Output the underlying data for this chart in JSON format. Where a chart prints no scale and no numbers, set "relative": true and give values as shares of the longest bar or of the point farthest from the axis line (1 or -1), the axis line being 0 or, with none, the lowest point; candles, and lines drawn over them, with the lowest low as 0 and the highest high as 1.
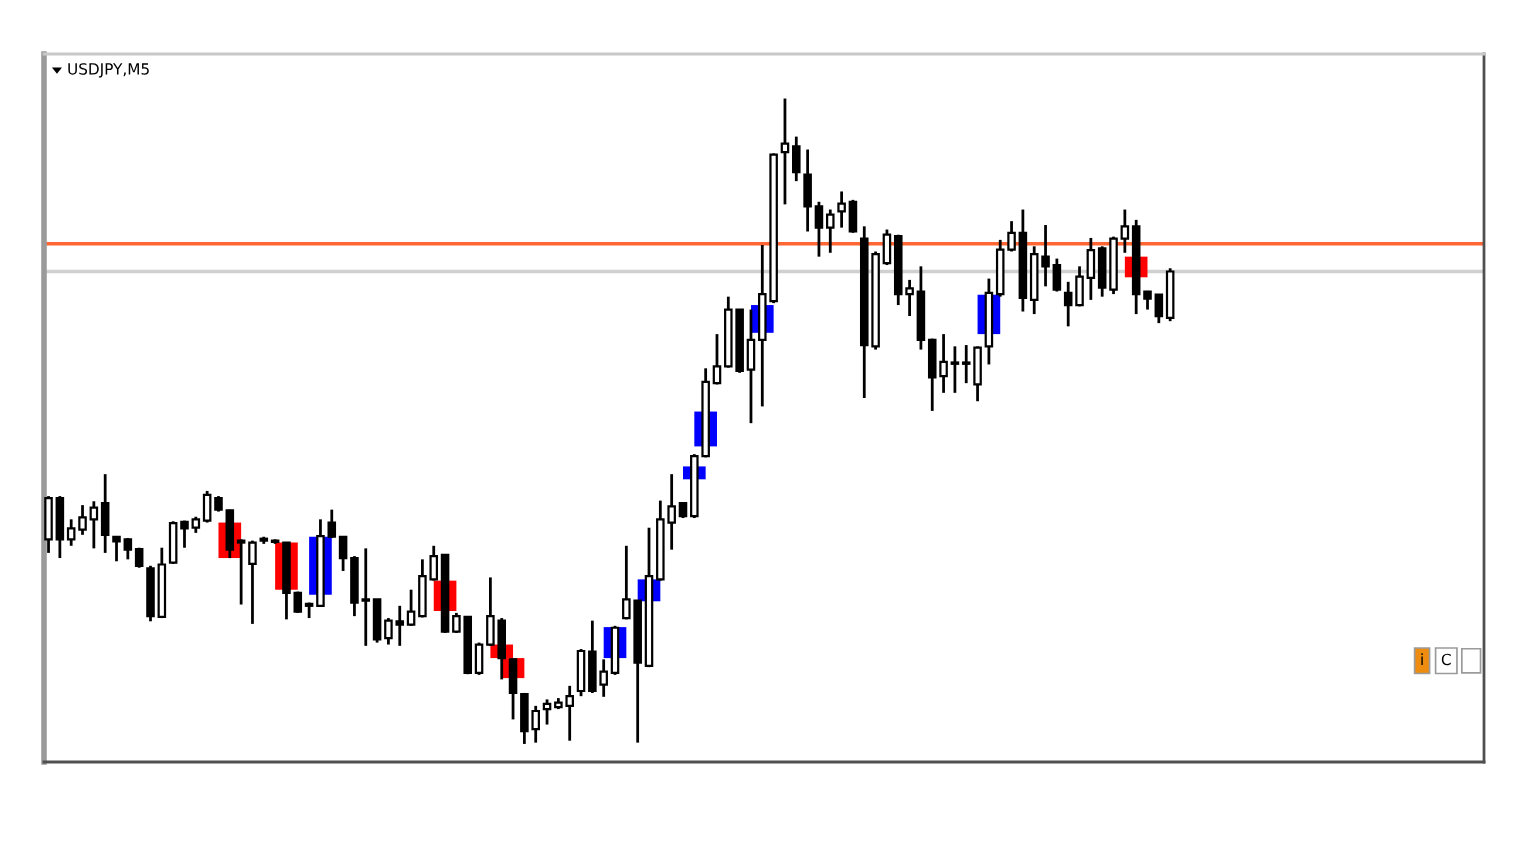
{
  "chart_data": {
    "type": "candlestick",
    "title": "USDJPY,M5",
    "relative": true,
    "categories": [
      null,
      null,
      null,
      null,
      null,
      null,
      null,
      null,
      null,
      null,
      null,
      null,
      null,
      null,
      null,
      null,
      null,
      null,
      null,
      null,
      null,
      null,
      null,
      null,
      null,
      null,
      null,
      null,
      null,
      null,
      null,
      null,
      null,
      null,
      null,
      null,
      null,
      null,
      null,
      null,
      null,
      null,
      null,
      null,
      null,
      null,
      null,
      null,
      null,
      null,
      null,
      null,
      null,
      null,
      null,
      null,
      null,
      null,
      null,
      null,
      null,
      null,
      null,
      null,
      null,
      null,
      null,
      null,
      null,
      null,
      null,
      null,
      null,
      null,
      null,
      null,
      null,
      null,
      null,
      null,
      null,
      null,
      null,
      null,
      null,
      null,
      null,
      null,
      null,
      null,
      null,
      null,
      null,
      null,
      null,
      null,
      null,
      null,
      null,
      null
    ],
    "ohlc": [
      [
        0.317,
        0.384,
        0.296,
        0.381
      ],
      [
        0.381,
        0.384,
        0.288,
        0.317
      ],
      [
        0.317,
        0.348,
        0.307,
        0.334
      ],
      [
        0.332,
        0.37,
        0.324,
        0.351
      ],
      [
        0.348,
        0.376,
        0.303,
        0.366
      ],
      [
        0.373,
        0.418,
        0.296,
        0.324
      ],
      [
        0.321,
        0.321,
        0.283,
        0.314
      ],
      [
        0.317,
        0.319,
        0.286,
        0.301
      ],
      [
        0.302,
        0.304,
        0.273,
        0.276
      ],
      [
        0.272,
        0.276,
        0.19,
        0.198
      ],
      [
        0.197,
        0.304,
        0.195,
        0.278
      ],
      [
        0.281,
        0.345,
        0.279,
        0.342
      ],
      [
        0.344,
        0.346,
        0.304,
        0.334
      ],
      [
        0.335,
        0.352,
        0.327,
        0.348
      ],
      [
        0.346,
        0.392,
        0.343,
        0.386
      ],
      [
        0.381,
        0.384,
        0.36,
        0.363
      ],
      [
        0.362,
        0.363,
        0.288,
        0.301
      ],
      [
        0.315,
        0.317,
        0.216,
        0.312
      ],
      [
        0.279,
        0.315,
        0.186,
        0.312
      ],
      [
        0.315,
        0.321,
        0.31,
        0.318
      ],
      [
        0.313,
        0.317,
        0.31,
        0.315
      ],
      [
        0.312,
        0.312,
        0.193,
        0.234
      ],
      [
        0.234,
        0.236,
        0.203,
        0.205
      ],
      [
        0.217,
        0.219,
        0.195,
        0.214
      ],
      [
        0.214,
        0.348,
        0.214,
        0.322
      ],
      [
        0.343,
        0.363,
        0.319,
        0.321
      ],
      [
        0.321,
        0.322,
        0.268,
        0.288
      ],
      [
        0.288,
        0.291,
        0.198,
        0.219
      ],
      [
        0.224,
        0.303,
        0.152,
        0.222
      ],
      [
        0.224,
        0.224,
        0.157,
        0.162
      ],
      [
        0.164,
        0.195,
        0.154,
        0.191
      ],
      [
        0.19,
        0.214,
        0.152,
        0.185
      ],
      [
        0.185,
        0.239,
        0.183,
        0.205
      ],
      [
        0.198,
        0.286,
        0.196,
        0.26
      ],
      [
        0.255,
        0.307,
        0.253,
        0.291
      ],
      [
        0.293,
        0.294,
        0.172,
        0.174
      ],
      [
        0.174,
        0.203,
        0.172,
        0.198
      ],
      [
        0.197,
        0.198,
        0.108,
        0.11
      ],
      [
        0.11,
        0.157,
        0.107,
        0.154
      ],
      [
        0.154,
        0.258,
        0.152,
        0.198
      ],
      [
        0.191,
        0.195,
        0.1,
        0.133
      ],
      [
        0.131,
        0.133,
        0.038,
        0.079
      ],
      [
        0.077,
        0.079,
        0,
        0.02
      ],
      [
        0.023,
        0.059,
        0.002,
        0.051
      ],
      [
        0.054,
        0.069,
        0.03,
        0.062
      ],
      [
        0.057,
        0.071,
        0.054,
        0.064
      ],
      [
        0.059,
        0.09,
        0.005,
        0.074
      ],
      [
        0.082,
        0.147,
        0.074,
        0.144
      ],
      [
        0.143,
        0.191,
        0.079,
        0.082
      ],
      [
        0.092,
        0.131,
        0.073,
        0.112
      ],
      [
        0.11,
        0.183,
        0.107,
        0.18
      ],
      [
        0.195,
        0.307,
        0.193,
        0.224
      ],
      [
        0.222,
        0.222,
        0.002,
        0.126
      ],
      [
        0.121,
        0.335,
        0.119,
        0.26
      ],
      [
        0.255,
        0.377,
        0.253,
        0.348
      ],
      [
        0.343,
        0.418,
        0.301,
        0.368
      ],
      [
        0.373,
        0.373,
        0.35,
        0.353
      ],
      [
        0.353,
        0.449,
        0.35,
        0.446
      ],
      [
        0.446,
        0.582,
        0.444,
        0.561
      ],
      [
        0.559,
        0.635,
        0.557,
        0.585
      ],
      [
        0.585,
        0.693,
        0.583,
        0.673
      ],
      [
        0.673,
        0.673,
        0.575,
        0.578
      ],
      [
        0.58,
        0.673,
        0.497,
        0.626
      ],
      [
        0.626,
        0.773,
        0.523,
        0.697
      ],
      [
        0.686,
        0.915,
        0.683,
        0.913
      ],
      [
        0.917,
        1,
        0.836,
        0.93
      ],
      [
        0.926,
        0.941,
        0.872,
        0.886
      ],
      [
        0.882,
        0.921,
        0.794,
        0.833
      ],
      [
        0.833,
        0.84,
        0.755,
        0.8
      ],
      [
        0.8,
        0.828,
        0.761,
        0.82
      ],
      [
        0.825,
        0.856,
        0.8,
        0.837
      ],
      [
        0.84,
        0.843,
        0.792,
        0.794
      ],
      [
        0.783,
        0.802,
        0.536,
        0.618
      ],
      [
        0.616,
        0.763,
        0.611,
        0.759
      ],
      [
        0.745,
        0.797,
        0.742,
        0.789
      ],
      [
        0.787,
        0.789,
        0.68,
        0.697
      ],
      [
        0.697,
        0.719,
        0.663,
        0.706
      ],
      [
        0.701,
        0.74,
        0.611,
        0.626
      ],
      [
        0.626,
        0.628,
        0.516,
        0.568
      ],
      [
        0.57,
        0.635,
        0.544,
        0.592
      ],
      [
        0.589,
        0.616,
        0.544,
        0.591
      ],
      [
        0.589,
        0.618,
        0.559,
        0.591
      ],
      [
        0.557,
        0.616,
        0.531,
        0.614
      ],
      [
        0.616,
        0.721,
        0.588,
        0.699
      ],
      [
        0.697,
        0.781,
        0.693,
        0.766
      ],
      [
        0.766,
        0.81,
        0.763,
        0.792
      ],
      [
        0.792,
        0.828,
        0.67,
        0.691
      ],
      [
        0.688,
        0.771,
        0.666,
        0.759
      ],
      [
        0.755,
        0.804,
        0.709,
        0.74
      ],
      [
        0.742,
        0.752,
        0.701,
        0.704
      ],
      [
        0.699,
        0.716,
        0.647,
        0.68
      ],
      [
        0.68,
        0.74,
        0.678,
        0.724
      ],
      [
        0.722,
        0.784,
        0.688,
        0.765
      ],
      [
        0.768,
        0.771,
        0.693,
        0.707
      ],
      [
        0.704,
        0.786,
        0.697,
        0.783
      ],
      [
        0.783,
        0.828,
        0.761,
        0.802
      ],
      [
        0.802,
        0.812,
        0.666,
        0.697
      ],
      [
        0.701,
        0.702,
        0.673,
        0.69
      ],
      [
        0.696,
        0.697,
        0.652,
        0.663
      ],
      [
        0.66,
        0.737,
        0.655,
        0.732
      ]
    ],
    "series": [
      {
        "type": "bar",
        "color": "#ff0000",
        "base": [
          null,
          null,
          null,
          null,
          null,
          null,
          null,
          null,
          null,
          null,
          null,
          null,
          null,
          null,
          null,
          null,
          0.288,
          null,
          null,
          null,
          null,
          0.239,
          null,
          null,
          null,
          null,
          null,
          null,
          null,
          null,
          null,
          null,
          null,
          null,
          null,
          0.206,
          null,
          null,
          null,
          null,
          0.133,
          0.102,
          null,
          null,
          null,
          null,
          null,
          null,
          null,
          null,
          null,
          null,
          null,
          null,
          null,
          null,
          null,
          null,
          null,
          null,
          null,
          null,
          null,
          null,
          null,
          null,
          null,
          null,
          null,
          null,
          null,
          null,
          null,
          null,
          null,
          null,
          null,
          null,
          null,
          null,
          null,
          null,
          null,
          null,
          null,
          null,
          null,
          null,
          null,
          null,
          null,
          null,
          null,
          null,
          null,
          null,
          0.723,
          null,
          null,
          null
        ],
        "values": [
          null,
          null,
          null,
          null,
          null,
          null,
          null,
          null,
          null,
          null,
          null,
          null,
          null,
          null,
          null,
          null,
          0.055,
          null,
          null,
          null,
          null,
          0.073,
          null,
          null,
          null,
          null,
          null,
          null,
          null,
          null,
          null,
          null,
          null,
          null,
          null,
          0.047,
          null,
          null,
          null,
          null,
          0.021,
          0.031,
          null,
          null,
          null,
          null,
          null,
          null,
          null,
          null,
          null,
          null,
          null,
          null,
          null,
          null,
          null,
          null,
          null,
          null,
          null,
          null,
          null,
          null,
          null,
          null,
          null,
          null,
          null,
          null,
          null,
          null,
          null,
          null,
          null,
          null,
          null,
          null,
          null,
          null,
          null,
          null,
          null,
          null,
          null,
          null,
          null,
          null,
          null,
          null,
          null,
          null,
          null,
          null,
          null,
          null,
          0.032,
          null,
          null,
          null
        ]
      },
      {
        "type": "bar",
        "color": "#0000ff",
        "base": [
          null,
          null,
          null,
          null,
          null,
          null,
          null,
          null,
          null,
          null,
          null,
          null,
          null,
          null,
          null,
          null,
          null,
          null,
          null,
          null,
          null,
          null,
          null,
          null,
          0.231,
          null,
          null,
          null,
          null,
          null,
          null,
          null,
          null,
          null,
          null,
          null,
          null,
          null,
          null,
          null,
          null,
          null,
          null,
          null,
          null,
          null,
          null,
          null,
          null,
          null,
          0.133,
          null,
          null,
          0.221,
          null,
          null,
          null,
          0.41,
          0.461,
          null,
          null,
          null,
          null,
          0.637,
          null,
          null,
          null,
          null,
          null,
          null,
          null,
          null,
          null,
          null,
          null,
          null,
          null,
          null,
          null,
          null,
          null,
          null,
          null,
          0.635,
          null,
          null,
          null,
          null,
          null,
          null,
          null,
          null,
          null,
          null,
          null,
          null,
          null,
          null,
          null,
          null
        ],
        "values": [
          null,
          null,
          null,
          null,
          null,
          null,
          null,
          null,
          null,
          null,
          null,
          null,
          null,
          null,
          null,
          null,
          null,
          null,
          null,
          null,
          null,
          null,
          null,
          null,
          0.09,
          null,
          null,
          null,
          null,
          null,
          null,
          null,
          null,
          null,
          null,
          null,
          null,
          null,
          null,
          null,
          null,
          null,
          null,
          null,
          null,
          null,
          null,
          null,
          null,
          null,
          0.048,
          null,
          null,
          0.034,
          null,
          null,
          null,
          0.02,
          0.054,
          null,
          null,
          null,
          null,
          0.043,
          null,
          null,
          null,
          null,
          null,
          null,
          null,
          null,
          null,
          null,
          null,
          null,
          null,
          null,
          null,
          null,
          null,
          null,
          null,
          0.061,
          null,
          null,
          null,
          null,
          null,
          null,
          null,
          null,
          null,
          null,
          null,
          null,
          null,
          null,
          null,
          null
        ]
      }
    ],
    "ref_lines": [
      {
        "axis": "y",
        "value": 0.775,
        "color": "#ff6633"
      },
      {
        "axis": "y",
        "value": 0.732,
        "color": "#d0d0d0"
      }
    ],
    "annotations": [
      "i",
      "C"
    ]
  }
}
